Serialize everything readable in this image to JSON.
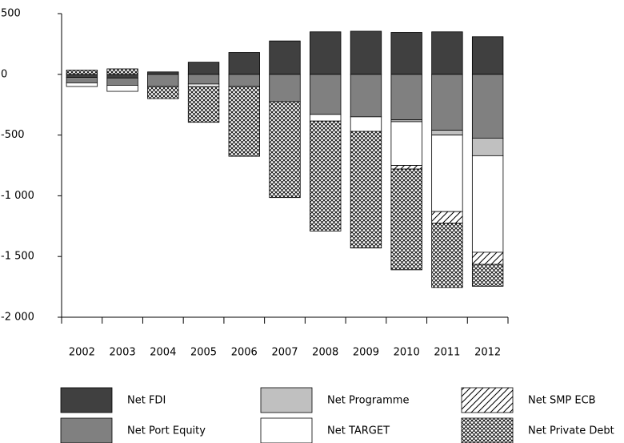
{
  "chart_data": {
    "type": "stacked-bar",
    "categories": [
      "2002",
      "2003",
      "2004",
      "2005",
      "2006",
      "2007",
      "2008",
      "2009",
      "2010",
      "2011",
      "2012"
    ],
    "series": [
      {
        "name": "Net FDI",
        "color": "#404040",
        "pattern": "solid",
        "values": [
          -25,
          -30,
          20,
          100,
          180,
          275,
          350,
          355,
          345,
          350,
          310
        ]
      },
      {
        "name": "Net Port Equity",
        "color": "#808080",
        "pattern": "solid",
        "values": [
          -45,
          -60,
          -100,
          -80,
          -100,
          -225,
          -330,
          -350,
          -375,
          -460,
          -525
        ]
      },
      {
        "name": "Net Programme",
        "color": "#c0c0c0",
        "pattern": "solid",
        "values": [
          null,
          null,
          null,
          null,
          null,
          null,
          null,
          null,
          -15,
          -40,
          -145
        ]
      },
      {
        "name": "Net TARGET",
        "color": "#ffffff",
        "pattern": "solid",
        "values": [
          -30,
          -50,
          null,
          -20,
          null,
          null,
          -55,
          -120,
          -360,
          -630,
          -795
        ]
      },
      {
        "name": "Net SMP ECB",
        "color": "#ffffff",
        "pattern": "diagonal",
        "values": [
          null,
          null,
          null,
          null,
          null,
          null,
          null,
          null,
          -30,
          -95,
          -100
        ]
      },
      {
        "name": "Net Private Debt",
        "color": "#ffffff",
        "pattern": "crosshatch",
        "values": [
          35,
          45,
          -100,
          -295,
          -575,
          -790,
          -905,
          -960,
          -830,
          -530,
          -180
        ]
      }
    ],
    "ylim": [
      -2000,
      500
    ],
    "yticks": [
      500,
      0,
      -500,
      {
        "value": -1000,
        "label": "-1 000"
      },
      {
        "value": -1500,
        "label": "-1 500"
      },
      {
        "value": -2000,
        "label": "-2 000"
      }
    ],
    "grid": false
  }
}
